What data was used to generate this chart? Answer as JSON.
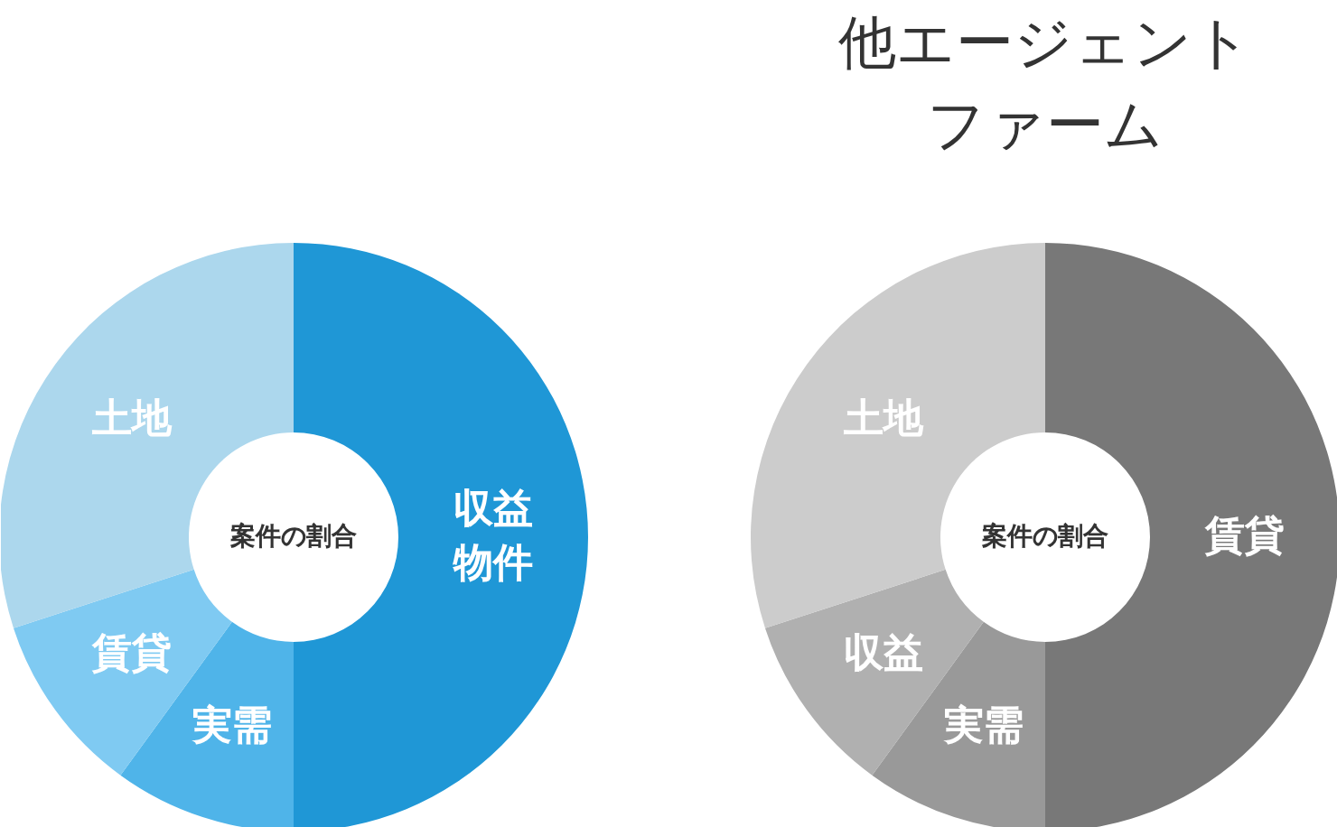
{
  "chart_data": [
    {
      "type": "donut",
      "categories": [
        "収益物件",
        "実需",
        "賃貸",
        "土地"
      ],
      "values": [
        50,
        10,
        10,
        30
      ],
      "colors": [
        "#1f97d6",
        "#4fb4e9",
        "#7fcaf2",
        "#acd7ed"
      ],
      "annotations": [
        "案件の割合"
      ]
    },
    {
      "type": "donut",
      "title": "他エージェントファーム",
      "categories": [
        "賃貸",
        "実需",
        "収益",
        "土地"
      ],
      "values": [
        50,
        10,
        10,
        30
      ],
      "colors": [
        "#787878",
        "#999999",
        "#b0b0b0",
        "#cccccc"
      ],
      "annotations": [
        "案件の割合"
      ]
    }
  ]
}
